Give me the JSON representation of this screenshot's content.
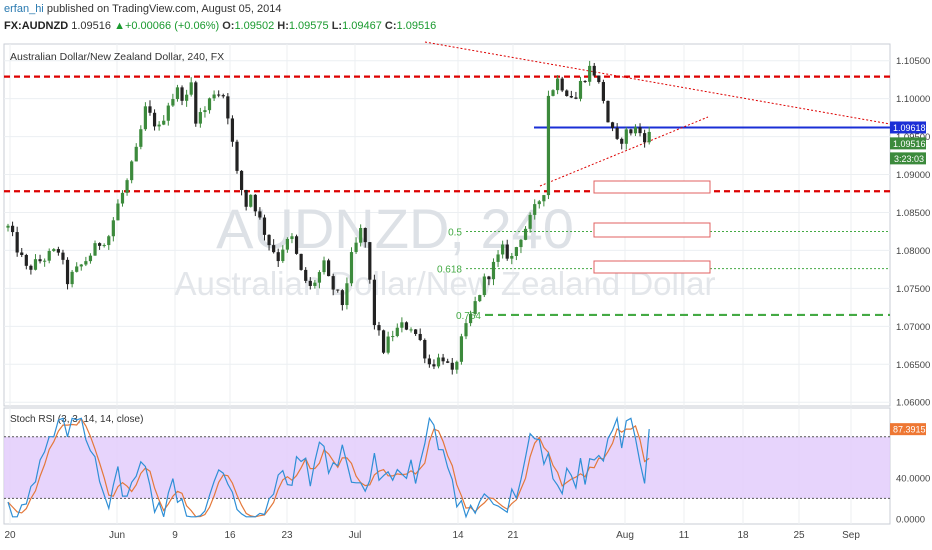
{
  "header": {
    "author": "erfan_hi",
    "published": "published on TradingView.com, August 05, 2014",
    "symbol": "FX:AUDNZD",
    "last": "1.09516",
    "change": "+0.00066 (+0.06%)",
    "o_label": "O:",
    "o": "1.09502",
    "h_label": "H:",
    "h": "1.09575",
    "l_label": "L:",
    "l": "1.09467",
    "c_label": "C:",
    "c": "1.09516"
  },
  "chart_data": [
    {
      "type": "candlestick",
      "title": "Australian Dollar/New Zealand Dollar, 240, FX",
      "watermark_symbol": "AUDNZD, 240",
      "watermark_name": "Australian Dollar/New Zealand Dollar",
      "ylim": [
        1.0595,
        1.1072
      ],
      "y_ticks": [
        "1.10500",
        "1.10000",
        "1.09500",
        "1.09000",
        "1.08500",
        "1.08000",
        "1.07500",
        "1.07000",
        "1.06500",
        "1.06000"
      ],
      "x_ticks": [
        "20",
        "Jun",
        "9",
        "16",
        "23",
        "Jul",
        "14",
        "21",
        "Aug",
        "11",
        "18",
        "25",
        "Sep"
      ],
      "price_label": "1.09516",
      "price_line_label": "1.09618",
      "countdown": "3:23:03",
      "grid": true,
      "fib_levels": [
        {
          "label": "0.5",
          "value": 1.0825
        },
        {
          "label": "0.618",
          "value": 1.0776
        },
        {
          "label": "0.764",
          "value": 1.0715
        }
      ],
      "horizontal_lines": [
        1.1029,
        1.0878,
        1.0962
      ],
      "path": [
        [
          0,
          1.083
        ],
        [
          4,
          1.0775
        ],
        [
          8,
          1.079
        ],
        [
          11,
          1.08
        ],
        [
          13,
          1.076
        ],
        [
          16,
          1.078
        ],
        [
          18,
          1.0795
        ],
        [
          20,
          1.081
        ],
        [
          22,
          1.082
        ],
        [
          24,
          1.086
        ],
        [
          26,
          1.089
        ],
        [
          28,
          1.093
        ],
        [
          30,
          1.0985
        ],
        [
          33,
          1.096
        ],
        [
          35,
          1.0995
        ],
        [
          37,
          1.101
        ],
        [
          39,
          1.1
        ],
        [
          40,
          1.102
        ],
        [
          41,
          1.0975
        ],
        [
          43,
          1.0985
        ],
        [
          45,
          1.101
        ],
        [
          47,
          1.1005
        ],
        [
          48,
          1.098
        ],
        [
          50,
          1.09
        ],
        [
          52,
          1.086
        ],
        [
          53,
          1.0875
        ],
        [
          55,
          1.084
        ],
        [
          57,
          1.081
        ],
        [
          59,
          1.079
        ],
        [
          60,
          1.0805
        ],
        [
          62,
          1.0815
        ],
        [
          64,
          1.077
        ],
        [
          66,
          1.075
        ],
        [
          69,
          1.078
        ],
        [
          70,
          1.076
        ],
        [
          73,
          1.073
        ],
        [
          75,
          1.079
        ],
        [
          77,
          1.0825
        ],
        [
          78,
          1.081
        ],
        [
          80,
          1.0705
        ],
        [
          82,
          1.067
        ],
        [
          84,
          1.069
        ],
        [
          86,
          1.07
        ],
        [
          88,
          1.07
        ],
        [
          90,
          1.068
        ],
        [
          92,
          1.065
        ],
        [
          95,
          1.066
        ],
        [
          97,
          1.0635
        ],
        [
          99,
          1.068
        ],
        [
          102,
          1.073
        ],
        [
          104,
          1.076
        ],
        [
          106,
          1.078
        ],
        [
          108,
          1.08
        ],
        [
          110,
          1.079
        ],
        [
          112,
          1.082
        ],
        [
          114,
          1.084
        ],
        [
          117,
          1.088
        ],
        [
          118,
          1.1005
        ],
        [
          120,
          1.1025
        ],
        [
          122,
          1.101
        ],
        [
          124,
          1.1
        ],
        [
          125,
          1.102
        ],
        [
          127,
          1.104
        ],
        [
          128,
          1.1035
        ],
        [
          130,
          1.1
        ],
        [
          131,
          1.097
        ],
        [
          133,
          1.094
        ],
        [
          135,
          1.0955
        ],
        [
          137,
          1.096
        ],
        [
          139,
          1.095
        ],
        [
          140,
          1.0952
        ]
      ],
      "osc": {
        "name": "Stoch RSI (3, 3, 14, 14, close)",
        "value_label": "87.3915",
        "y_ticks": [
          "40.0000",
          "0.0000"
        ],
        "bands": [
          80,
          20
        ],
        "ylim": [
          -5,
          108
        ]
      }
    }
  ],
  "colors": {
    "up": "#3c8a3c",
    "down": "#222222",
    "resistance": "#dd0000",
    "support_blue": "#1a2fd6",
    "fib": "#44aa44",
    "stoch_k": "#2f8fd6",
    "stoch_d": "#e4783a",
    "band_fill": "#e3cdfb",
    "axis_text": "#444444",
    "grid": "#eceff2"
  }
}
